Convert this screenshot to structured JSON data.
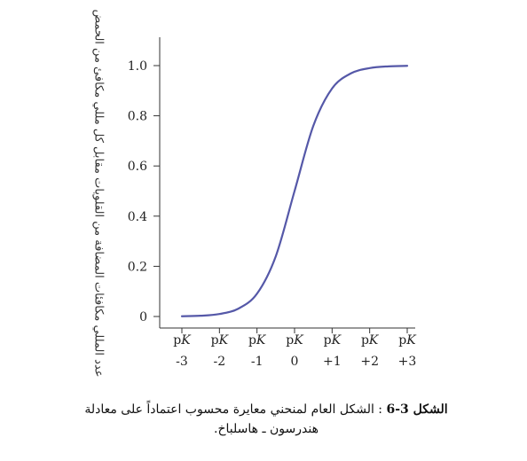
{
  "chart_data": {
    "type": "line",
    "title": "",
    "ylabel": "عدد المللي مكافئات المضافة من القلويات مقابل كل مللي مكافئ من الحمض",
    "xlabel": "",
    "ylim": [
      0,
      1.0
    ],
    "yticks": [
      {
        "value": 0,
        "label": "0"
      },
      {
        "value": 0.2,
        "label": "0.2"
      },
      {
        "value": 0.4,
        "label": "0.4"
      },
      {
        "value": 0.6,
        "label": "0.6"
      },
      {
        "value": 0.8,
        "label": "0.8"
      },
      {
        "value": 1.0,
        "label": "1.0"
      }
    ],
    "xticks": [
      {
        "value": -3,
        "line1": "pK",
        "line2": "-3"
      },
      {
        "value": -2,
        "line1": "pK",
        "line2": "-2"
      },
      {
        "value": -1,
        "line1": "pK",
        "line2": "-1"
      },
      {
        "value": 0,
        "line1": "pK",
        "line2": "0"
      },
      {
        "value": 1,
        "line1": "pK",
        "line2": "+1"
      },
      {
        "value": 2,
        "line1": "pK",
        "line2": "+2"
      },
      {
        "value": 3,
        "line1": "pK",
        "line2": "+3"
      }
    ],
    "series": [
      {
        "color": "#5558a8",
        "x": [
          -3,
          -2.5,
          -2,
          -1.5,
          -1,
          -0.5,
          0,
          0.5,
          1,
          1.5,
          2,
          2.5,
          3
        ],
        "y": [
          0.001,
          0.003,
          0.01,
          0.031,
          0.091,
          0.24,
          0.5,
          0.76,
          0.909,
          0.969,
          0.99,
          0.997,
          0.999
        ]
      }
    ]
  },
  "caption": {
    "label_bold": "الشكل 3-6",
    "line1_text": " : الشكل العام لمنحني معايرة محسوب اعتماداً على معادلة",
    "line2_text": "هندرسون ـ هاسلباخ."
  }
}
